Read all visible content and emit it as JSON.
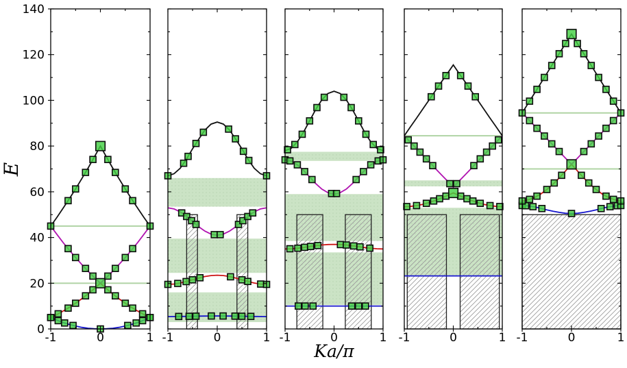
{
  "colors": {
    "band_blue": "#1414cc",
    "band_red": "#cc1414",
    "band_magenta": "#b013b0",
    "band_black": "#111111",
    "marker_fill": "#44d044",
    "marker_edge": "#0d0d0d",
    "allowed_band": "#9cc98f",
    "hatch_line": "#999999",
    "barrier_edge": "#222222",
    "axis": "#000000"
  },
  "chart_data": {
    "type": "line",
    "title": "",
    "xlabel": "Ka/π",
    "ylabel": "E",
    "xlim": [
      -1,
      1
    ],
    "ylim": [
      0,
      140
    ],
    "xticks": [
      -1,
      0,
      1
    ],
    "xtick_labels": [
      "-1",
      "0",
      "1"
    ],
    "yticks": [
      0,
      20,
      40,
      60,
      80,
      100,
      120,
      140
    ],
    "ytick_labels": [
      "0",
      "20",
      "40",
      "60",
      "80",
      "100",
      "120",
      "140"
    ],
    "x_minor_ticks": [
      -0.5,
      0.5
    ],
    "y_minor_ticks": [
      10,
      30,
      50,
      70,
      90,
      110,
      130
    ],
    "grid": false,
    "legend": "none",
    "k_samples": [
      0,
      0.125,
      0.25,
      0.375,
      0.5,
      0.625,
      0.75,
      0.875,
      1
    ],
    "panels": [
      {
        "id": 1,
        "bands": [
          {
            "name": "band1-blue",
            "color": "band_blue",
            "E": [
              0,
              0.08,
              0.31,
              0.7,
              1.25,
              1.95,
              2.81,
              3.83,
              5
            ],
            "marker_k": [
              -1,
              -0.85,
              -0.72,
              -0.55,
              0,
              0.55,
              0.72,
              0.85,
              1
            ],
            "big_marker_k": []
          },
          {
            "name": "band2-red",
            "color": "band_red",
            "E": [
              20,
              17.58,
              15.31,
              13.2,
              11.25,
              9.45,
              7.81,
              6.33,
              5
            ],
            "marker_k": [
              -1,
              -0.85,
              -0.65,
              -0.5,
              -0.3,
              -0.15,
              0.15,
              0.3,
              0.5,
              0.65,
              0.85,
              1
            ],
            "big_marker_k": [
              0
            ]
          },
          {
            "name": "band3-magenta",
            "color": "band_magenta",
            "E": [
              20,
              22.58,
              25.31,
              28.2,
              31.25,
              34.45,
              37.81,
              41.33,
              45
            ],
            "marker_k": [
              -1,
              -0.65,
              -0.5,
              -0.3,
              -0.15,
              0.15,
              0.3,
              0.5,
              0.65,
              1
            ],
            "big_marker_k": []
          },
          {
            "name": "band4-black",
            "color": "band_black",
            "E": [
              80,
              75.08,
              70.31,
              65.7,
              61.25,
              56.95,
              52.81,
              48.83,
              45
            ],
            "marker_k": [
              -0.65,
              -0.5,
              -0.3,
              -0.15,
              0.15,
              0.3,
              0.5,
              0.65
            ],
            "big_marker_k": [
              0
            ]
          }
        ],
        "allowed_bands": [],
        "allowed_lines": [
          20,
          45
        ],
        "barriers": null
      },
      {
        "id": 2,
        "bands": [
          {
            "name": "band1-blue",
            "color": "band_blue",
            "E": [
              5.7,
              5.68,
              5.65,
              5.6,
              5.55,
              5.5,
              5.45,
              5.42,
              5.4
            ],
            "marker_k": [
              -0.78,
              -0.57,
              -0.43,
              -0.12,
              0.12,
              0.36,
              0.5,
              0.68
            ],
            "big_marker_k": []
          },
          {
            "name": "band2-red",
            "color": "band_red",
            "E": [
              23.5,
              23.35,
              22.92,
              22.26,
              21.5,
              20.74,
              20.08,
              19.65,
              19.5
            ],
            "marker_k": [
              -1,
              -0.8,
              -0.63,
              -0.5,
              -0.35,
              0.27,
              0.5,
              0.62,
              0.88,
              1
            ],
            "big_marker_k": []
          },
          {
            "name": "band3-magenta",
            "color": "band_magenta",
            "E": [
              41,
              41.5,
              42.8,
              44.7,
              47,
              49.3,
              51.2,
              52.5,
              53
            ],
            "marker_k": [
              -0.72,
              -0.62,
              -0.52,
              -0.43,
              -0.06,
              0.06,
              0.43,
              0.52,
              0.62,
              0.72
            ],
            "big_marker_k": []
          },
          {
            "name": "band4-black",
            "color": "band_black",
            "E": [
              90.5,
              89.6,
              87,
              83,
              78.8,
              74.2,
              70.3,
              67.9,
              67
            ],
            "marker_k": [
              -1,
              -0.68,
              -0.59,
              -0.43,
              -0.28,
              0.23,
              0.37,
              0.53,
              0.64,
              1
            ],
            "big_marker_k": []
          }
        ],
        "allowed_bands": [
          [
            3,
            16
          ],
          [
            24.5,
            39.5
          ],
          [
            53.5,
            66
          ]
        ],
        "allowed_lines": [],
        "barriers": {
          "top": 50,
          "x_ranges": [
            [
              -0.62,
              -0.4
            ],
            [
              0.4,
              0.62
            ]
          ]
        }
      },
      {
        "id": 3,
        "bands": [
          {
            "name": "band1-blue",
            "color": "band_blue",
            "E": [
              10,
              10,
              10,
              10,
              10,
              10,
              10,
              10,
              10
            ],
            "marker_k": [
              -0.73,
              -0.59,
              -0.43,
              0.36,
              0.5,
              0.64
            ],
            "big_marker_k": []
          },
          {
            "name": "band2-red",
            "color": "band_red",
            "E": [
              37,
              36.92,
              36.71,
              36.38,
              36,
              35.62,
              35.29,
              35.08,
              35
            ],
            "marker_k": [
              -0.9,
              -0.74,
              -0.6,
              -0.48,
              -0.33,
              0.13,
              0.25,
              0.4,
              0.53,
              0.73
            ],
            "big_marker_k": []
          },
          {
            "name": "band3-magenta",
            "color": "band_magenta",
            "E": [
              59,
              59.6,
              61.2,
              63.6,
              66.5,
              69.4,
              71.8,
              73.4,
              74
            ],
            "marker_k": [
              -1,
              -0.9,
              -0.75,
              -0.6,
              -0.45,
              -0.05,
              0.05,
              0.45,
              0.6,
              0.75,
              0.9,
              1
            ],
            "big_marker_k": []
          },
          {
            "name": "band4-black",
            "color": "band_black",
            "E": [
              104,
              103,
              100.2,
              96,
              91,
              86,
              81.8,
              79,
              78
            ],
            "marker_k": [
              -0.95,
              -0.8,
              -0.65,
              -0.5,
              -0.35,
              -0.2,
              0.2,
              0.35,
              0.5,
              0.65,
              0.8,
              0.95
            ],
            "big_marker_k": []
          }
        ],
        "allowed_bands": [
          [
            10.5,
            33.5
          ],
          [
            38.5,
            59
          ],
          [
            73.5,
            77.5
          ]
        ],
        "allowed_lines": [],
        "barriers": {
          "top": 50,
          "x_ranges": [
            [
              -0.76,
              -0.23
            ],
            [
              0.23,
              0.76
            ]
          ]
        }
      },
      {
        "id": 4,
        "bands": [
          {
            "name": "band1-blue",
            "color": "band_blue",
            "E": [
              23.2,
              23.2,
              23.2,
              23.2,
              23.2,
              23.2,
              23.2,
              23.2,
              23.2
            ],
            "marker_k": [],
            "big_marker_k": []
          },
          {
            "name": "band2-red",
            "color": "band_red",
            "E": [
              59.5,
              58.33,
              57.2,
              56.16,
              55.26,
              54.51,
              53.96,
              53.61,
              53.5
            ],
            "marker_k": [
              -0.95,
              -0.75,
              -0.55,
              -0.4,
              -0.28,
              -0.15,
              0.15,
              0.28,
              0.4,
              0.55,
              0.75,
              0.95
            ],
            "big_marker_k": [
              0
            ]
          },
          {
            "name": "band3-magenta",
            "color": "band_magenta",
            "E": [
              62,
              64.8,
              67.6,
              70.4,
              73.3,
              76.1,
              78.9,
              81.7,
              84.5
            ],
            "marker_k": [
              -0.92,
              -0.8,
              -0.68,
              -0.55,
              -0.42,
              -0.07,
              0.07,
              0.42,
              0.55,
              0.68,
              0.8,
              0.92
            ],
            "big_marker_k": []
          },
          {
            "name": "band4-black",
            "color": "band_black",
            "E": [
              115.5,
              111.6,
              107.8,
              103.9,
              100,
              96.1,
              92.2,
              88.4,
              84.5
            ],
            "marker_k": [
              -0.45,
              -0.3,
              -0.15,
              0.15,
              0.3,
              0.45
            ],
            "big_marker_k": []
          }
        ],
        "allowed_bands": [
          [
            23.5,
            53
          ],
          [
            62.4,
            65
          ]
        ],
        "allowed_lines": [
          84.5
        ],
        "barriers": {
          "top": 50,
          "x_ranges": [
            [
              -0.94,
              -0.14
            ],
            [
              0.14,
              0.94
            ]
          ]
        }
      },
      {
        "id": 5,
        "bands": [
          {
            "name": "band1-blue",
            "color": "band_blue",
            "E": [
              50.5,
              50.6,
              51,
              51.5,
              52.1,
              52.8,
              53.4,
              53.8,
              54
            ],
            "marker_k": [
              -1,
              -0.93,
              -0.78,
              -0.6,
              0,
              0.6,
              0.78,
              0.93,
              1
            ],
            "big_marker_k": []
          },
          {
            "name": "band2-red",
            "color": "band_red",
            "E": [
              72,
              69,
              66,
              63.3,
              61,
              59,
              57.5,
              56.5,
              56
            ],
            "marker_k": [
              -1,
              -0.85,
              -0.7,
              -0.5,
              -0.35,
              -0.2,
              0.2,
              0.35,
              0.5,
              0.7,
              0.85,
              1
            ],
            "big_marker_k": [
              0
            ]
          },
          {
            "name": "band3-magenta",
            "color": "band_magenta",
            "E": [
              72,
              74.8,
              77.6,
              80.4,
              83.25,
              86.1,
              88.9,
              91.7,
              94.5
            ],
            "marker_k": [
              -1,
              -0.85,
              -0.7,
              -0.55,
              -0.4,
              -0.25,
              0.25,
              0.4,
              0.55,
              0.7,
              0.85,
              1
            ],
            "big_marker_k": []
          },
          {
            "name": "band4-black",
            "color": "band_black",
            "E": [
              129,
              124.7,
              120.4,
              116.1,
              111.75,
              107.4,
              103.1,
              98.8,
              94.5
            ],
            "marker_k": [
              -0.85,
              -0.7,
              -0.55,
              -0.4,
              -0.25,
              -0.12,
              0.12,
              0.25,
              0.4,
              0.55,
              0.7,
              0.85
            ],
            "big_marker_k": [
              0
            ]
          }
        ],
        "allowed_bands": [],
        "allowed_lines": [
          70,
          94.5
        ],
        "barriers": {
          "top": 50,
          "x_ranges": [
            [
              -1,
              1
            ]
          ]
        }
      }
    ]
  }
}
